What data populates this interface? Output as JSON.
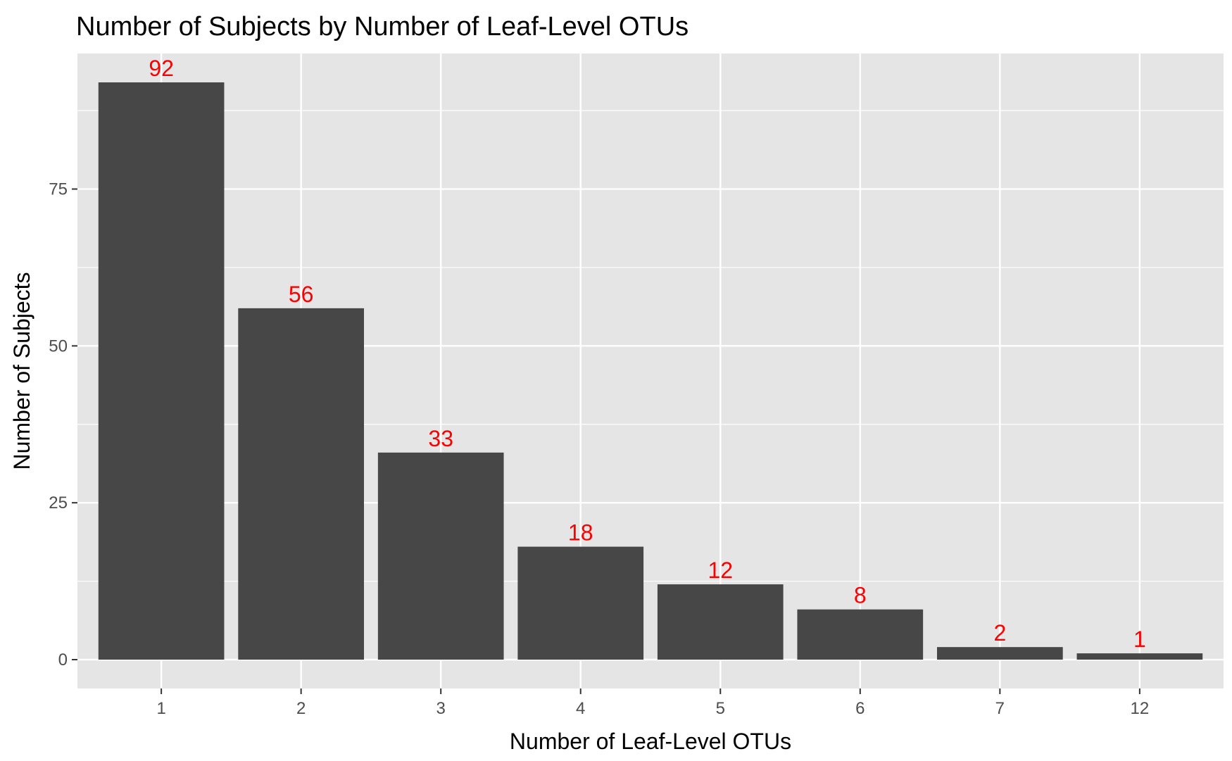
{
  "chart_data": {
    "type": "bar",
    "title": "Number of Subjects by Number of Leaf-Level OTUs",
    "xlabel": "Number of Leaf-Level OTUs",
    "ylabel": "Number of Subjects",
    "categories": [
      "1",
      "2",
      "3",
      "4",
      "5",
      "6",
      "7",
      "12"
    ],
    "values": [
      92,
      56,
      33,
      18,
      12,
      8,
      2,
      1
    ],
    "data_labels": [
      "92",
      "56",
      "33",
      "18",
      "12",
      "8",
      "2",
      "1"
    ],
    "ylim": [
      -4.6,
      96.6
    ],
    "yticks": [
      0,
      25,
      50,
      75
    ],
    "ytick_labels": [
      "0",
      "25",
      "50",
      "75"
    ],
    "grid": true,
    "legend": "none",
    "colors": {
      "panel_background": "#e5e5e5",
      "grid_line": "#ffffff",
      "bar_fill": "#474747",
      "data_label": "#ff0000",
      "tick_mark": "#333333"
    }
  }
}
